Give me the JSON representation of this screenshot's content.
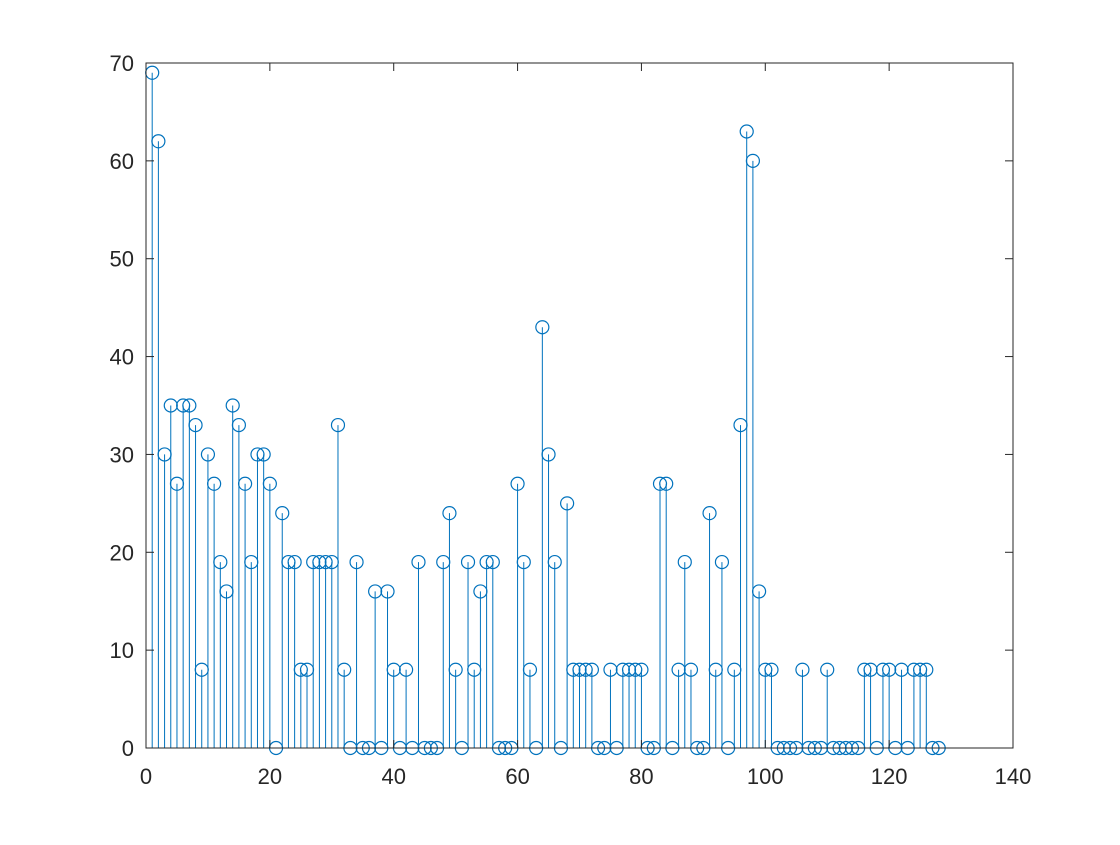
{
  "chart_data": {
    "type": "stem",
    "title": "",
    "xlabel": "",
    "ylabel": "",
    "xlim": [
      0,
      140
    ],
    "ylim": [
      0,
      70
    ],
    "xticks": [
      0,
      20,
      40,
      60,
      80,
      100,
      120,
      140
    ],
    "yticks": [
      0,
      10,
      20,
      30,
      40,
      50,
      60,
      70
    ],
    "xtick_labels": [
      "0",
      "20",
      "40",
      "60",
      "80",
      "100",
      "120",
      "140"
    ],
    "ytick_labels": [
      "0",
      "10",
      "20",
      "30",
      "40",
      "50",
      "60",
      "70"
    ],
    "grid": false,
    "legend": false,
    "marker": "circle",
    "color": "#0072BD",
    "axis_color": "#262626",
    "series": [
      {
        "x": [
          1,
          2,
          3,
          4,
          5,
          6,
          7,
          8,
          9,
          10,
          11,
          12,
          13,
          14,
          15,
          16,
          17,
          18,
          19,
          20,
          21,
          22,
          23,
          24,
          25,
          26,
          27,
          28,
          29,
          30,
          31,
          32,
          33,
          34,
          35,
          36,
          37,
          38,
          39,
          40,
          41,
          42,
          43,
          44,
          45,
          46,
          47,
          48,
          49,
          50,
          51,
          52,
          53,
          54,
          55,
          56,
          57,
          58,
          59,
          60,
          61,
          62,
          63,
          64,
          65,
          66,
          67,
          68,
          69,
          70,
          71,
          72,
          73,
          74,
          75,
          76,
          77,
          78,
          79,
          80,
          81,
          82,
          83,
          84,
          85,
          86,
          87,
          88,
          89,
          90,
          91,
          92,
          93,
          94,
          95,
          96,
          97,
          98,
          99,
          100,
          101,
          102,
          103,
          104,
          105,
          106,
          107,
          108,
          109,
          110,
          111,
          112,
          113,
          114,
          115,
          116,
          117,
          118,
          119,
          120,
          121,
          122,
          123,
          124,
          125,
          126,
          127,
          128
        ],
        "values": [
          69,
          62,
          30,
          35,
          27,
          35,
          35,
          33,
          8,
          30,
          27,
          19,
          16,
          35,
          33,
          27,
          19,
          30,
          30,
          27,
          0,
          24,
          19,
          19,
          8,
          8,
          19,
          19,
          19,
          19,
          33,
          8,
          0,
          19,
          0,
          0,
          16,
          0,
          16,
          8,
          0,
          8,
          0,
          19,
          0,
          0,
          0,
          19,
          24,
          8,
          0,
          19,
          8,
          16,
          19,
          19,
          0,
          0,
          0,
          27,
          19,
          8,
          0,
          43,
          30,
          19,
          0,
          25,
          8,
          8,
          8,
          8,
          0,
          0,
          8,
          0,
          8,
          8,
          8,
          8,
          0,
          0,
          27,
          27,
          0,
          8,
          19,
          8,
          0,
          0,
          24,
          8,
          19,
          0,
          8,
          33,
          63,
          60,
          16,
          8,
          8,
          0,
          0,
          0,
          0,
          8,
          0,
          0,
          0,
          8,
          0,
          0,
          0,
          0,
          0,
          8,
          8,
          0,
          8,
          8,
          0,
          8,
          0,
          8,
          8,
          8,
          0,
          0
        ]
      }
    ]
  }
}
